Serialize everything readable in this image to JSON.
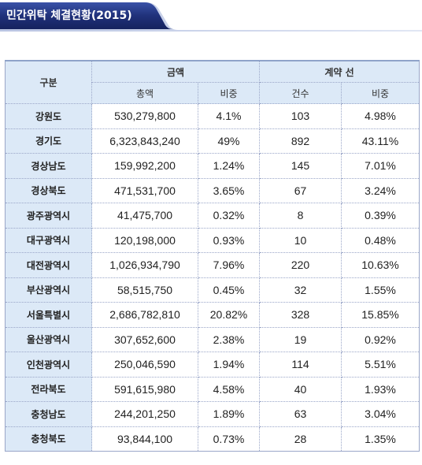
{
  "title": "민간위탁 체결현황(2015)",
  "colors": {
    "title_bar": "#20317a",
    "header_bg": "#dce9f7"
  },
  "headers": {
    "division": "구분",
    "amount_group": "금액",
    "contract_group": "계약 선",
    "total_amount": "총액",
    "amount_ratio": "비중",
    "count": "건수",
    "count_ratio": "비중"
  },
  "rows": [
    {
      "region": "강원도",
      "total": "530,279,800",
      "ratio": "4.1%",
      "count": "103",
      "count_ratio": "4.98%"
    },
    {
      "region": "경기도",
      "total": "6,323,843,240",
      "ratio": "49%",
      "count": "892",
      "count_ratio": "43.11%"
    },
    {
      "region": "경상남도",
      "total": "159,992,200",
      "ratio": "1.24%",
      "count": "145",
      "count_ratio": "7.01%"
    },
    {
      "region": "경상북도",
      "total": "471,531,700",
      "ratio": "3.65%",
      "count": "67",
      "count_ratio": "3.24%"
    },
    {
      "region": "광주광역시",
      "total": "41,475,700",
      "ratio": "0.32%",
      "count": "8",
      "count_ratio": "0.39%"
    },
    {
      "region": "대구광역시",
      "total": "120,198,000",
      "ratio": "0.93%",
      "count": "10",
      "count_ratio": "0.48%"
    },
    {
      "region": "대전광역시",
      "total": "1,026,934,790",
      "ratio": "7.96%",
      "count": "220",
      "count_ratio": "10.63%"
    },
    {
      "region": "부산광역시",
      "total": "58,515,750",
      "ratio": "0.45%",
      "count": "32",
      "count_ratio": "1.55%"
    },
    {
      "region": "서울특별시",
      "total": "2,686,782,810",
      "ratio": "20.82%",
      "count": "328",
      "count_ratio": "15.85%"
    },
    {
      "region": "울산광역시",
      "total": "307,652,600",
      "ratio": "2.38%",
      "count": "19",
      "count_ratio": "0.92%"
    },
    {
      "region": "인천광역시",
      "total": "250,046,590",
      "ratio": "1.94%",
      "count": "114",
      "count_ratio": "5.51%"
    },
    {
      "region": "전라북도",
      "total": "591,615,980",
      "ratio": "4.58%",
      "count": "40",
      "count_ratio": "1.93%"
    },
    {
      "region": "충청남도",
      "total": "244,201,250",
      "ratio": "1.89%",
      "count": "63",
      "count_ratio": "3.04%"
    },
    {
      "region": "충청북도",
      "total": "93,844,100",
      "ratio": "0.73%",
      "count": "28",
      "count_ratio": "1.35%"
    }
  ]
}
